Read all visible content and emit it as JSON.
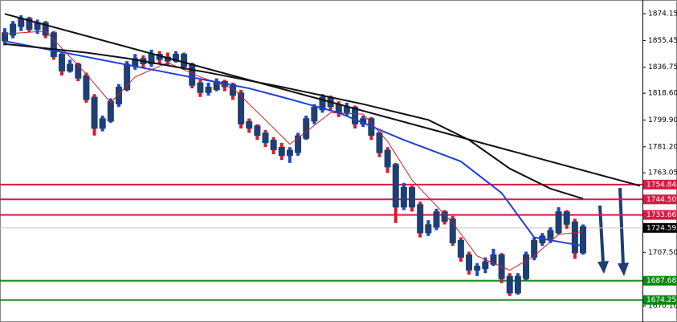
{
  "chart_data": {
    "type": "candlestick",
    "up_color": "#1f45c8",
    "down_color": "#d81b2a",
    "ylim": [
      1658.9,
      1883.7
    ],
    "yticks": [
      1874.15,
      1855.45,
      1836.75,
      {
        "value": 1818.6,
        "label": "1818.60"
      },
      {
        "value": 1799.9,
        "label": "1799.90"
      },
      {
        "value": 1781.2,
        "label": "1781.20"
      },
      1763.05,
      {
        "value": 1707.5,
        "label": "1707.50"
      },
      {
        "value": 1670.1,
        "label": "1670.10"
      }
    ],
    "candles": [
      [
        1856,
        1864,
        1852,
        1860
      ],
      [
        1860,
        1869,
        1857,
        1866
      ],
      [
        1866,
        1873,
        1862,
        1870
      ],
      [
        1870,
        1872,
        1861,
        1864
      ],
      [
        1864,
        1870,
        1860,
        1867
      ],
      [
        1867,
        1869,
        1857,
        1860
      ],
      [
        1860,
        1862,
        1842,
        1845
      ],
      [
        1845,
        1848,
        1831,
        1835
      ],
      [
        1835,
        1842,
        1833,
        1838
      ],
      [
        1838,
        1840,
        1827,
        1830
      ],
      [
        1830,
        1833,
        1812,
        1815
      ],
      [
        1815,
        1818,
        1789,
        1795
      ],
      [
        1795,
        1803,
        1792,
        1800
      ],
      [
        1800,
        1815,
        1798,
        1812
      ],
      [
        1812,
        1825,
        1809,
        1822
      ],
      [
        1822,
        1841,
        1820,
        1838
      ],
      [
        1838,
        1846,
        1835,
        1842
      ],
      [
        1842,
        1845,
        1836,
        1840
      ],
      [
        1840,
        1849,
        1837,
        1845
      ],
      [
        1845,
        1848,
        1839,
        1843
      ],
      [
        1843,
        1847,
        1838,
        1842
      ],
      [
        1842,
        1848,
        1840,
        1845
      ],
      [
        1845,
        1847,
        1835,
        1838
      ],
      [
        1838,
        1840,
        1822,
        1825
      ],
      [
        1825,
        1828,
        1816,
        1820
      ],
      [
        1820,
        1826,
        1817,
        1822
      ],
      [
        1822,
        1829,
        1820,
        1826
      ],
      [
        1826,
        1828,
        1820,
        1824
      ],
      [
        1824,
        1826,
        1814,
        1818
      ],
      [
        1818,
        1821,
        1794,
        1798
      ],
      [
        1798,
        1801,
        1791,
        1795
      ],
      [
        1795,
        1797,
        1786,
        1790
      ],
      [
        1790,
        1793,
        1781,
        1785
      ],
      [
        1785,
        1788,
        1776,
        1780
      ],
      [
        1780,
        1784,
        1772,
        1776
      ],
      [
        1776,
        1781,
        1770,
        1778
      ],
      [
        1778,
        1791,
        1775,
        1788
      ],
      [
        1788,
        1803,
        1786,
        1800
      ],
      [
        1800,
        1811,
        1797,
        1808
      ],
      [
        1808,
        1818,
        1805,
        1815
      ],
      [
        1815,
        1817,
        1806,
        1810
      ],
      [
        1810,
        1813,
        1802,
        1806
      ],
      [
        1806,
        1812,
        1803,
        1808
      ],
      [
        1808,
        1810,
        1794,
        1798
      ],
      [
        1798,
        1803,
        1795,
        1800
      ],
      [
        1800,
        1802,
        1786,
        1790
      ],
      [
        1790,
        1792,
        1774,
        1778
      ],
      [
        1778,
        1781,
        1763,
        1768
      ],
      [
        1768,
        1770,
        1728,
        1740
      ],
      [
        1740,
        1756,
        1737,
        1752
      ],
      [
        1752,
        1754,
        1736,
        1740
      ],
      [
        1740,
        1743,
        1718,
        1722
      ],
      [
        1722,
        1730,
        1719,
        1726
      ],
      [
        1726,
        1738,
        1723,
        1735
      ],
      [
        1735,
        1737,
        1727,
        1730
      ],
      [
        1730,
        1733,
        1712,
        1715
      ],
      [
        1715,
        1718,
        1701,
        1705
      ],
      [
        1705,
        1708,
        1692,
        1696
      ],
      [
        1696,
        1700,
        1691,
        1697
      ],
      [
        1697,
        1704,
        1693,
        1700
      ],
      [
        1700,
        1710,
        1698,
        1705
      ],
      [
        1705,
        1707,
        1686,
        1690
      ],
      [
        1690,
        1693,
        1677,
        1680
      ],
      [
        1680,
        1693,
        1678,
        1690
      ],
      [
        1690,
        1708,
        1688,
        1705
      ],
      [
        1705,
        1718,
        1702,
        1715
      ],
      [
        1715,
        1721,
        1712,
        1718
      ],
      [
        1718,
        1725,
        1714,
        1722
      ],
      [
        1722,
        1739,
        1720,
        1735
      ],
      [
        1735,
        1737,
        1724,
        1728
      ],
      [
        1728,
        1731,
        1703,
        1708
      ],
      [
        1708,
        1727,
        1706,
        1724.59
      ]
    ],
    "lines": [
      {
        "color": "#d81b2a",
        "width": 1,
        "x": [
          0,
          5,
          10,
          13,
          16,
          20,
          24,
          28,
          32,
          35,
          40,
          44,
          47,
          50,
          55,
          58,
          62,
          65,
          68,
          71
        ],
        "values": [
          1860,
          1862,
          1832,
          1812,
          1830,
          1840,
          1830,
          1822,
          1800,
          1783,
          1805,
          1804,
          1785,
          1758,
          1728,
          1705,
          1695,
          1705,
          1720,
          1722
        ]
      },
      {
        "color": "#1f3fd8",
        "width": 2,
        "x": [
          0,
          10,
          20,
          30,
          34,
          41,
          49,
          56,
          61,
          65,
          68,
          71
        ],
        "values": [
          1855,
          1844,
          1833,
          1822,
          1816,
          1805,
          1786,
          1771,
          1749,
          1718,
          1715,
          1712
        ]
      },
      {
        "color": "#111111",
        "width": 2,
        "x": [
          0,
          10,
          15,
          25,
          34,
          44,
          52,
          57,
          62,
          67,
          71
        ],
        "values": [
          1853,
          1847,
          1843,
          1833,
          1823,
          1811,
          1800,
          1786,
          1766,
          1752,
          1745
        ]
      },
      {
        "color": "#111111",
        "width": 2,
        "x": [
          0,
          78
        ],
        "values": [
          1874,
          1754
        ]
      }
    ],
    "levels": [
      {
        "value": 1754.84,
        "color": "#d81b44"
      },
      {
        "value": 1744.5,
        "label": "1744.50",
        "color": "#d81b44"
      },
      {
        "value": 1733.66,
        "color": "#d81b44"
      },
      {
        "value": 1724.59,
        "color": "#000000",
        "line_color": "#c8c8c8"
      },
      {
        "value": 1687.68,
        "color": "#118811"
      },
      {
        "value": 1674.25,
        "color": "#118811"
      }
    ]
  }
}
